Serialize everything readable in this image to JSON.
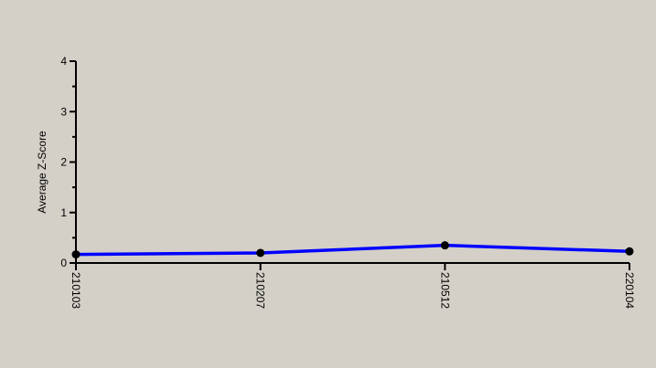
{
  "chart_data": {
    "type": "line",
    "title": "",
    "xlabel": "",
    "ylabel": "Average Z-Score",
    "categories": [
      "210103",
      "210207",
      "210512",
      "220104"
    ],
    "series": [
      {
        "values": [
          0.17,
          0.2,
          0.35,
          0.23
        ]
      }
    ],
    "ylim": [
      0,
      4
    ],
    "y_ticks": [
      "0",
      "1",
      "2",
      "3",
      "4"
    ],
    "grid": false,
    "colors": {
      "background": "#d4d0c8",
      "line": "#0000ff",
      "marker": "#000000",
      "axis": "#000000"
    }
  }
}
